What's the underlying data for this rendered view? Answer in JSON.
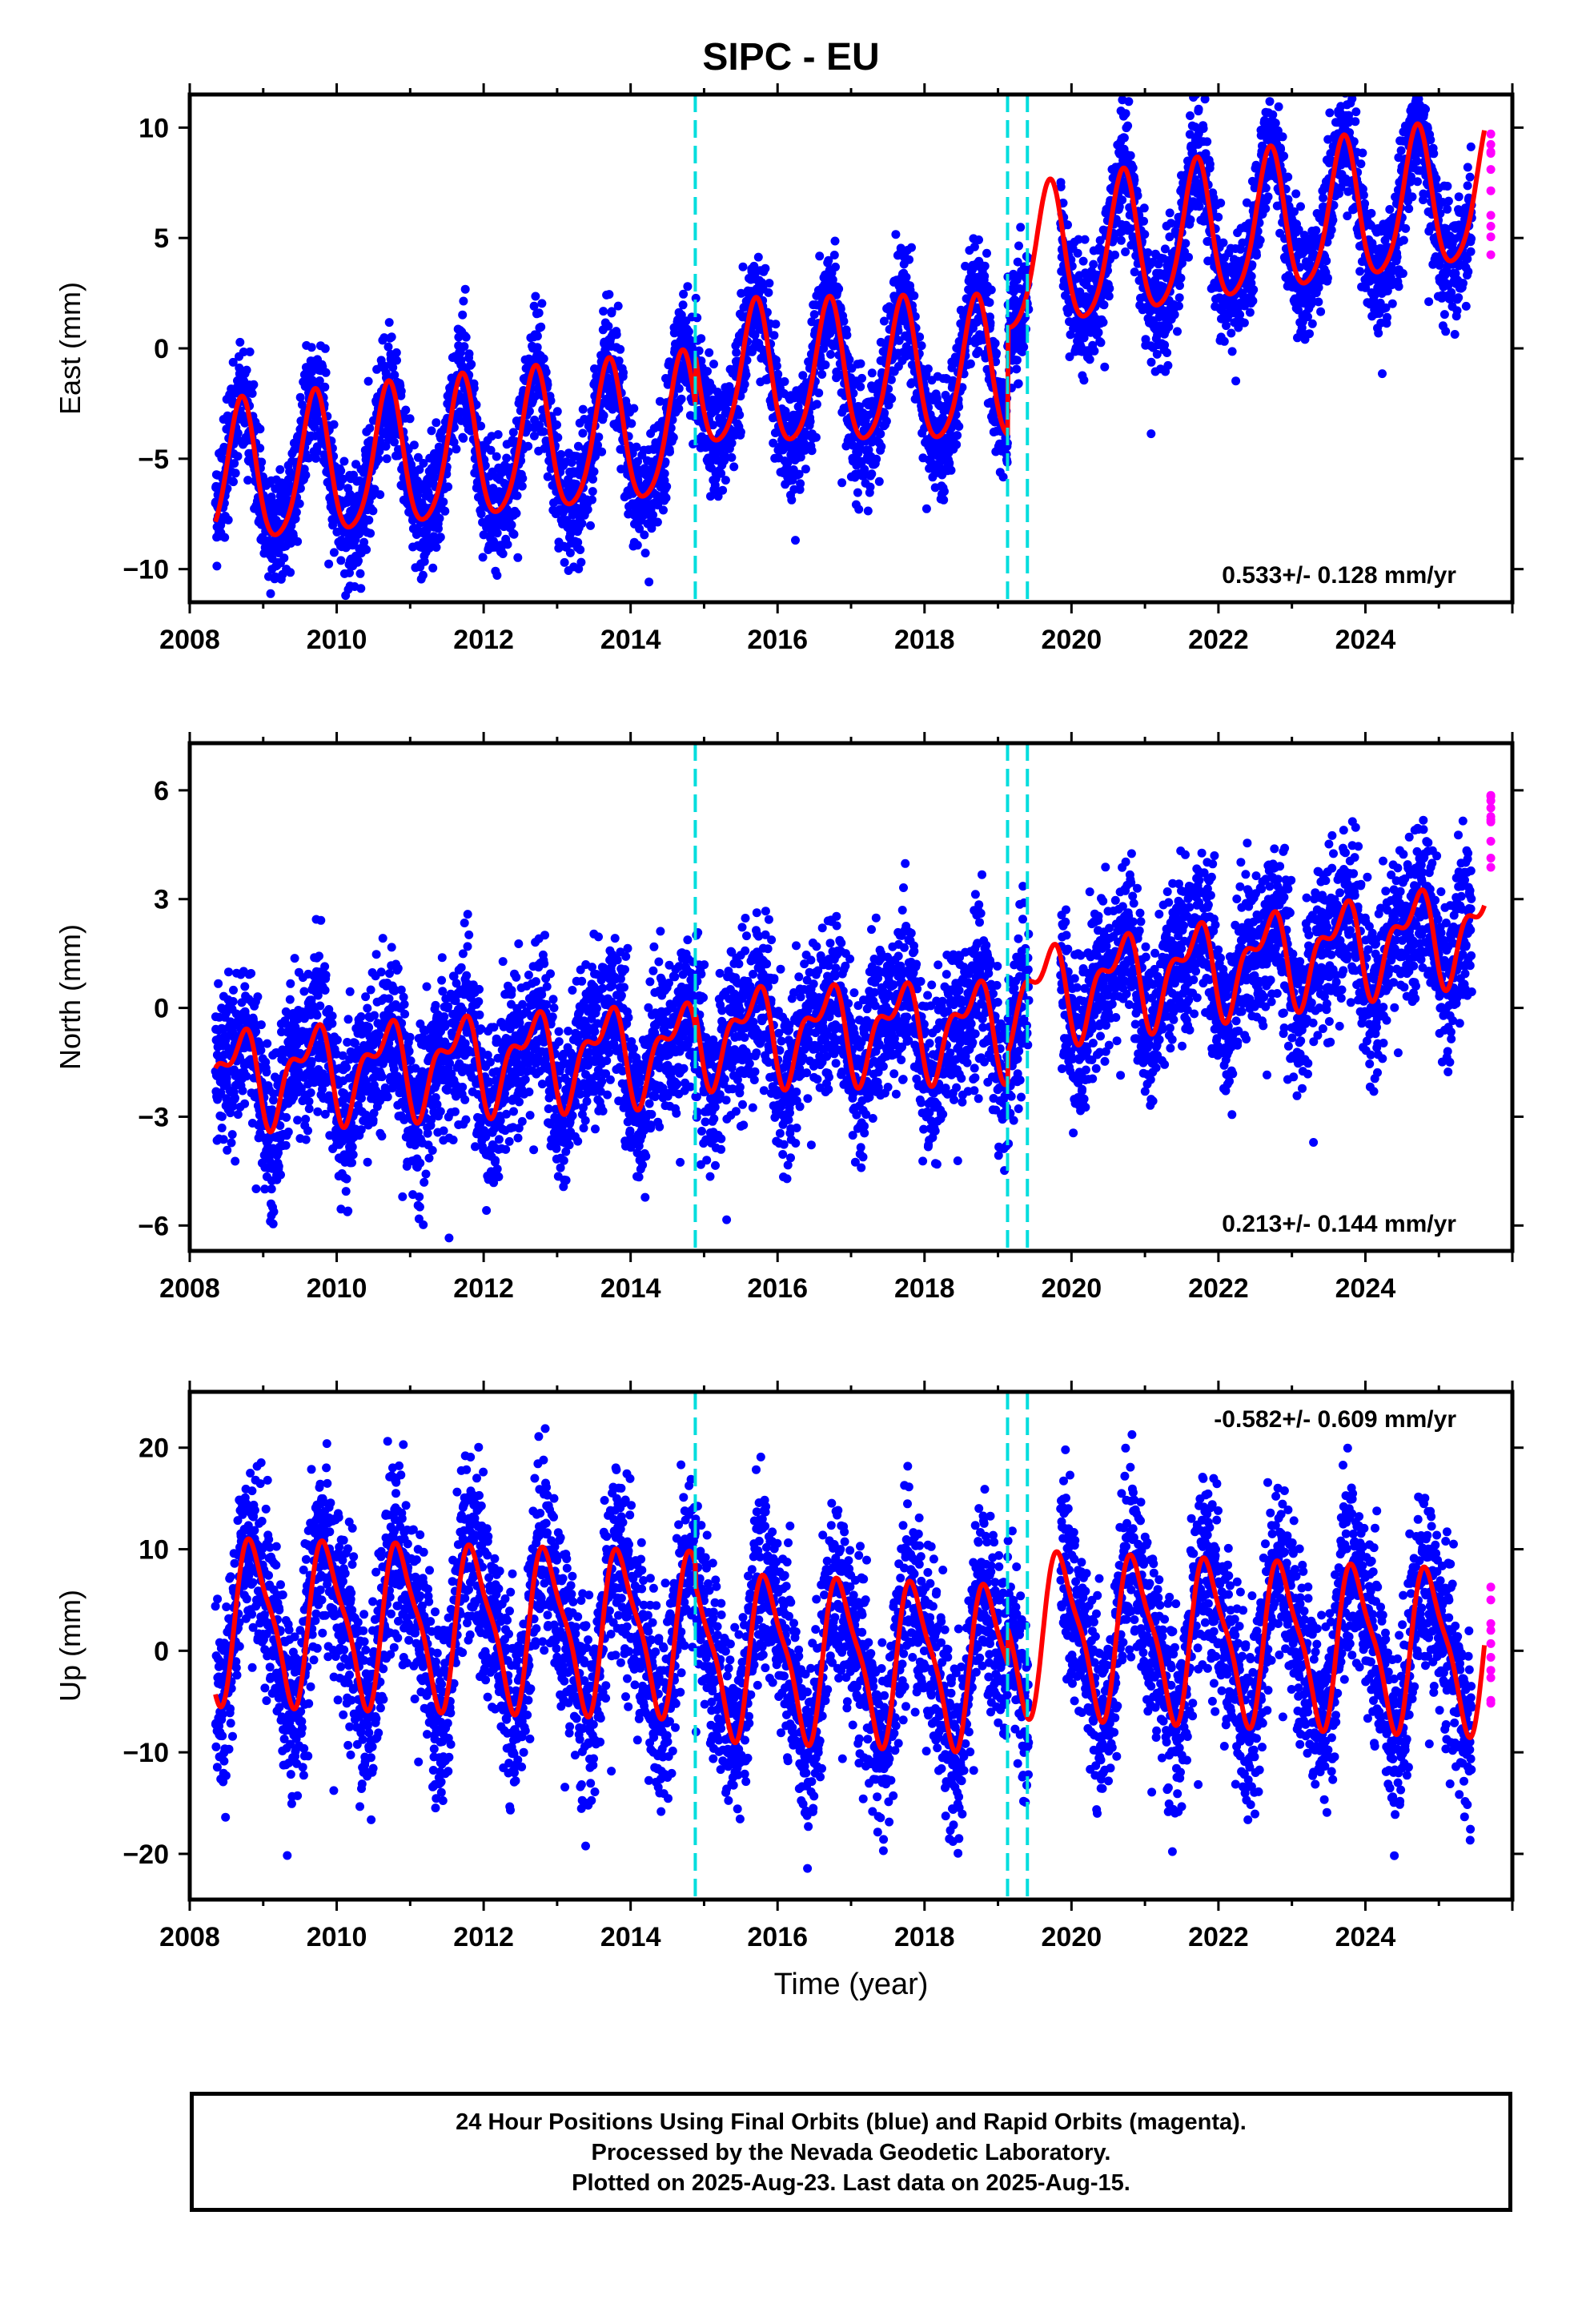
{
  "figure": {
    "title": "SIPC - EU",
    "x_axis_label": "Time (year)",
    "footer_lines": [
      "24 Hour Positions Using Final Orbits (blue) and Rapid Orbits (magenta).",
      "Processed by the Nevada Geodetic Laboratory.",
      "Plotted on 2025-Aug-23. Last data on 2025-Aug-15."
    ],
    "colors": {
      "final_orbits": "#0000ff",
      "rapid_orbits": "#ff00ff",
      "model_fit": "#ff0000",
      "step_lines": "#00dddd",
      "frame": "#000000"
    }
  },
  "chart_data": [
    {
      "type": "scatter",
      "ylabel": "East (mm)",
      "xlim": [
        2008,
        2026
      ],
      "ylim": [
        -11.5,
        11.5
      ],
      "xticks": [
        2008,
        2010,
        2012,
        2014,
        2016,
        2018,
        2020,
        2022,
        2024
      ],
      "yticks": [
        -10,
        -5,
        0,
        5,
        10
      ],
      "annotation": "0.533+/- 0.128 mm/yr",
      "annotation_position": "bottom-right",
      "step_epochs": [
        2014.88,
        2019.13,
        2019.4
      ],
      "data_start": 2008.35,
      "data_end": 2025.62,
      "gap": [
        2019.42,
        2019.85
      ],
      "rapid_start": 2025.45,
      "model": {
        "segments": [
          {
            "start": 2008.35,
            "end": 2014.88,
            "offset": -2.2,
            "rate": 0.35
          },
          {
            "start": 2014.88,
            "end": 2019.13,
            "offset": -1.2,
            "rate": 0.05
          },
          {
            "start": 2019.13,
            "end": 2025.62,
            "offset": 3.7,
            "rate": 0.5
          }
        ],
        "annual_amplitude": 3.2,
        "annual_phase": 0.45,
        "semiannual_amplitude": 0.5,
        "semiannual_phase": 0.1,
        "reference_epoch": 2019.13
      },
      "scatter_sd": 1.3
    },
    {
      "type": "scatter",
      "ylabel": "North (mm)",
      "xlim": [
        2008,
        2026
      ],
      "ylim": [
        -6.7,
        7.3
      ],
      "xticks": [
        2008,
        2010,
        2012,
        2014,
        2016,
        2018,
        2020,
        2022,
        2024
      ],
      "yticks": [
        -6,
        -3,
        0,
        3,
        6
      ],
      "annotation": "0.213+/- 0.144 mm/yr",
      "annotation_position": "bottom-right",
      "step_epochs": [
        2014.88,
        2019.13,
        2019.4
      ],
      "data_start": 2008.35,
      "data_end": 2025.62,
      "gap": [
        2019.42,
        2019.85
      ],
      "rapid_start": 2025.45,
      "model": {
        "segments": [
          {
            "start": 2008.35,
            "end": 2014.88,
            "offset": -0.6,
            "rate": 0.12
          },
          {
            "start": 2014.88,
            "end": 2019.13,
            "offset": -0.5,
            "rate": 0.05
          },
          {
            "start": 2019.13,
            "end": 2025.62,
            "offset": 0.3,
            "rate": 0.3
          }
        ],
        "annual_amplitude": 1.1,
        "annual_phase": 0.4,
        "semiannual_amplitude": 0.6,
        "semiannual_phase": 0.2,
        "reference_epoch": 2019.13
      },
      "scatter_sd": 1.1
    },
    {
      "type": "scatter",
      "ylabel": "Up (mm)",
      "xlim": [
        2008,
        2026
      ],
      "ylim": [
        -24.5,
        25.5
      ],
      "xticks": [
        2008,
        2010,
        2012,
        2014,
        2016,
        2018,
        2020,
        2022,
        2024
      ],
      "yticks": [
        -20,
        -10,
        0,
        10,
        20
      ],
      "annotation": "-0.582+/- 0.609 mm/yr",
      "annotation_position": "top-right",
      "step_epochs": [
        2014.88,
        2019.13,
        2019.4
      ],
      "data_start": 2008.35,
      "data_end": 2025.62,
      "gap": [
        2019.42,
        2019.85
      ],
      "rapid_start": 2025.45,
      "model": {
        "segments": [
          {
            "start": 2008.35,
            "end": 2014.88,
            "offset": 1.0,
            "rate": -0.2
          },
          {
            "start": 2014.88,
            "end": 2019.13,
            "offset": -1.5,
            "rate": -0.3
          },
          {
            "start": 2019.13,
            "end": 2025.62,
            "offset": 2.0,
            "rate": -0.3
          }
        ],
        "annual_amplitude": 7.5,
        "annual_phase": 0.62,
        "semiannual_amplitude": 2.0,
        "semiannual_phase": 0.6,
        "reference_epoch": 2019.13
      },
      "scatter_sd": 4.5
    }
  ]
}
